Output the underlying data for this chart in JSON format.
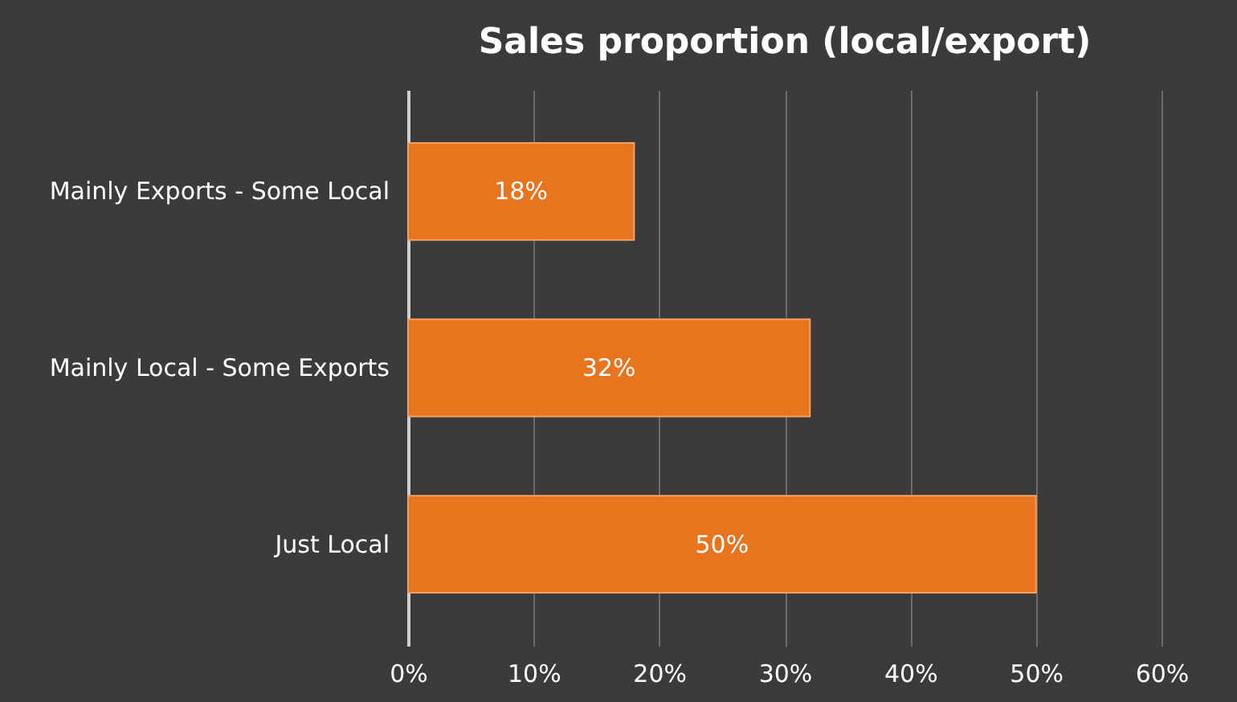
{
  "chart_data": {
    "type": "bar",
    "orientation": "horizontal",
    "title": "Sales proportion (local/export)",
    "categories": [
      "Mainly Exports - Some Local",
      "Mainly Local - Some Exports",
      "Just Local"
    ],
    "values": [
      18,
      32,
      50
    ],
    "color": "#e8741e",
    "value_labels": [
      "18%",
      "32%",
      "50%"
    ],
    "xlim": [
      0,
      60
    ],
    "xticks": [
      {
        "value": 0,
        "label": "0%"
      },
      {
        "value": 10,
        "label": "10%"
      },
      {
        "value": 20,
        "label": "20%"
      },
      {
        "value": 30,
        "label": "30%"
      },
      {
        "value": 40,
        "label": "40%"
      },
      {
        "value": 50,
        "label": "50%"
      },
      {
        "value": 60,
        "label": "60%"
      }
    ],
    "grid": "x"
  }
}
